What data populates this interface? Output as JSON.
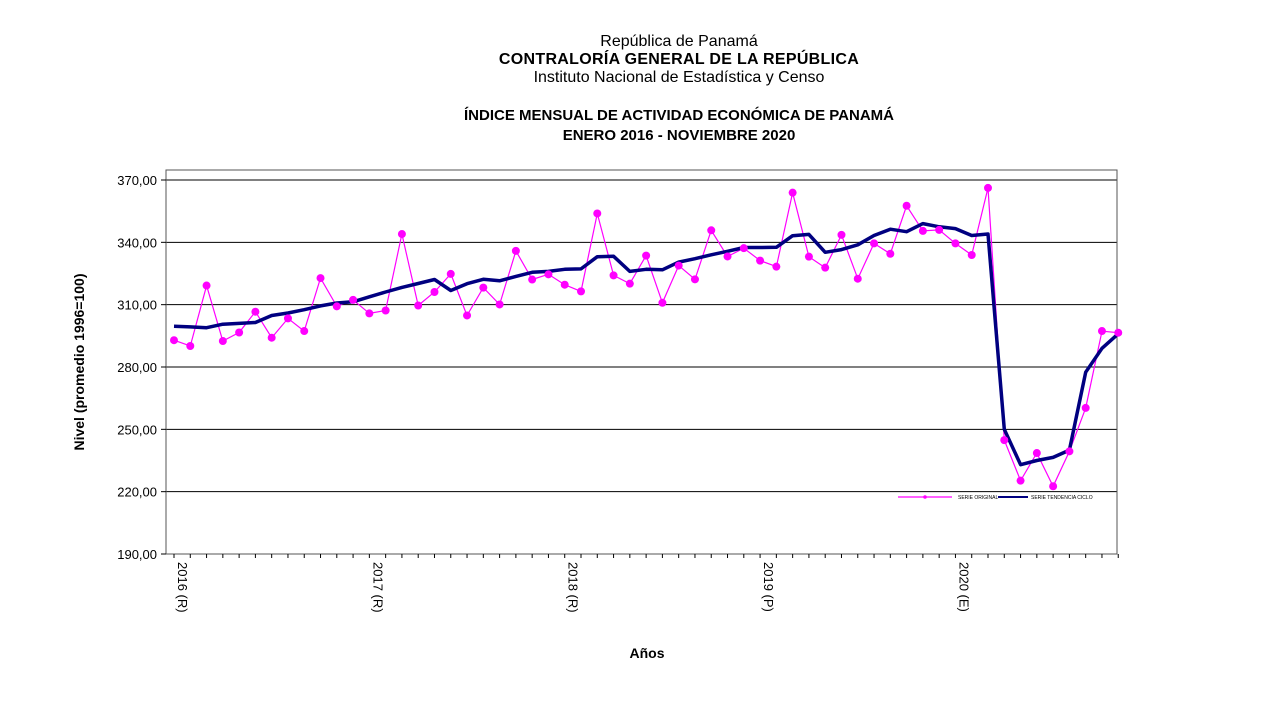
{
  "header": {
    "country": "República de Panamá",
    "organization": "CONTRALORÍA GENERAL DE LA REPÚBLICA",
    "institute": "Instituto Nacional de Estadística y Censo",
    "title": "ÍNDICE MENSUAL DE ACTIVIDAD ECONÓMICA DE PANAMÁ",
    "subtitle": "ENERO 2016 -  NOVIEMBRE 2020"
  },
  "colors": {
    "original": "#ff00ff",
    "trend": "#000080",
    "grid": "#000000",
    "background": "#ffffff"
  },
  "chart_data": {
    "type": "line",
    "xlabel": "Años",
    "ylabel": "Nivel (promedio 1996=100)",
    "ylim": [
      190,
      370
    ],
    "yticks": [
      190,
      220,
      250,
      280,
      310,
      340,
      370
    ],
    "ytick_labels": [
      "190,00",
      "220,00",
      "250,00",
      "280,00",
      "310,00",
      "340,00",
      "370,00"
    ],
    "grid": true,
    "legend": "inside-bottom-right",
    "x_tick_labels": [
      {
        "label": "2016 (R)",
        "index": 0
      },
      {
        "label": "2017 (R)",
        "index": 12
      },
      {
        "label": "2018 (R)",
        "index": 24
      },
      {
        "label": "2019 (P)",
        "index": 36
      },
      {
        "label": "2020 (E)",
        "index": 48
      }
    ],
    "series": [
      {
        "name": "SERIE ORIGINAL",
        "style": "line-markers",
        "values": [
          292.9,
          290.1,
          319.2,
          292.5,
          296.6,
          306.6,
          294.1,
          303.4,
          297.3,
          322.8,
          309.2,
          312.3,
          305.8,
          307.2,
          344.0,
          309.6,
          316.1,
          324.8,
          304.8,
          318.2,
          310.1,
          335.9,
          322.1,
          324.6,
          319.6,
          316.4,
          353.9,
          324.1,
          320.1,
          333.6,
          310.9,
          328.8,
          322.2,
          345.8,
          333.2,
          337.2,
          331.2,
          328.3,
          363.9,
          333.1,
          327.8,
          343.6,
          322.5,
          339.5,
          334.5,
          357.6,
          345.5,
          346.0,
          339.5,
          333.9,
          366.2,
          244.8,
          225.3,
          238.6,
          222.6,
          239.4,
          260.3,
          297.3,
          296.5
        ]
      },
      {
        "name": "SERIE TENDENCIA CICLO",
        "style": "line",
        "values": [
          299.6,
          299.3,
          298.9,
          300.6,
          301.0,
          301.4,
          304.8,
          306.0,
          307.6,
          309.4,
          310.8,
          311.4,
          313.8,
          316.1,
          318.3,
          320.2,
          322.1,
          316.8,
          320.1,
          322.2,
          321.5,
          323.6,
          325.6,
          326.0,
          327.0,
          327.2,
          333.1,
          333.3,
          326.0,
          327.0,
          326.8,
          330.5,
          332.1,
          334.0,
          335.7,
          337.5,
          337.5,
          337.6,
          343.2,
          343.8,
          335.2,
          336.5,
          338.8,
          343.3,
          346.3,
          345.1,
          349.0,
          347.5,
          346.6,
          343.3,
          344.0,
          250.0,
          233.0,
          235.0,
          236.5,
          240.0,
          277.5,
          289.0,
          296.0
        ]
      }
    ]
  }
}
